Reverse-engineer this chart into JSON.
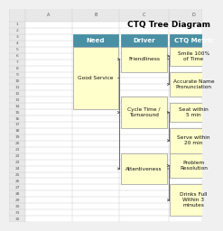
{
  "title": "CTQ Tree Diagram",
  "title_fontsize": 6.5,
  "header_bg": "#4A90A4",
  "header_text_color": "white",
  "box_bg": "#FFFFCC",
  "box_border": "#AAAAAA",
  "text_color": "#111111",
  "header_fontsize": 5.0,
  "label_fontsize": 4.2,
  "headers": [
    "Need",
    "Driver",
    "CTQ Metric"
  ],
  "need": "Good Service",
  "drivers": [
    "Friendliness",
    "Cycle Time /\nTurnaround",
    "Attentiveness"
  ],
  "ctq": [
    [
      "Smile 100%\nof Time",
      "Accurate Name\nPronunciation"
    ],
    [
      "Seat within\n5 min",
      "Serve within\n20 min"
    ],
    [
      "Problem\nResolution",
      "Drinks Full\nWithin 3\nminutes"
    ]
  ],
  "bg_color": "#F0F0F0",
  "cell_bg": "#FFFFFF",
  "grid_color": "#C8C8C8",
  "row_labels": [
    "1",
    "2",
    "3",
    "4",
    "5",
    "6",
    "7",
    "8",
    "9",
    "10",
    "11",
    "12",
    "13",
    "14",
    "15",
    "16",
    "17",
    "18",
    "19",
    "20",
    "21",
    "22",
    "23",
    "24",
    "25",
    "26",
    "27",
    "28",
    "29",
    "30",
    "31",
    "32"
  ],
  "col_labels": [
    "A",
    "B",
    "C",
    "D"
  ],
  "line_color": "#555555",
  "arrow_color": "#555555"
}
